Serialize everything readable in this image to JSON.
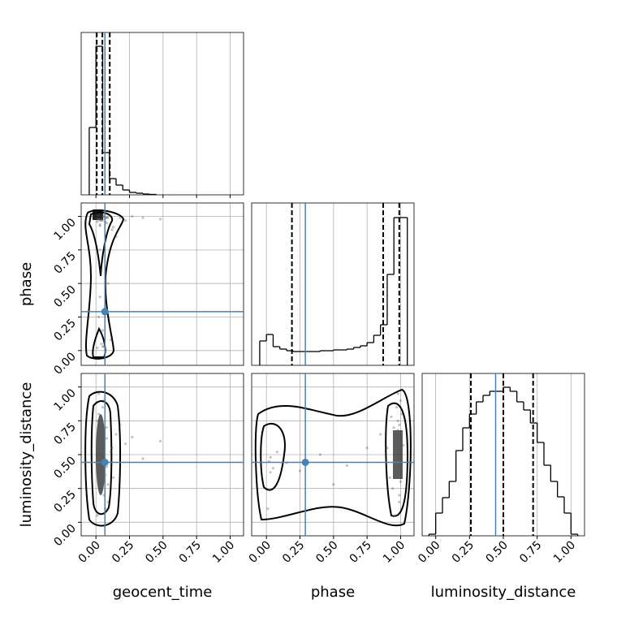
{
  "chart_data": {
    "type": "corner",
    "grid": true,
    "truth_color": "#4682b4",
    "point_color": "#555555",
    "line_color": "#000000",
    "parameters": [
      {
        "label": "geocent_time",
        "lim": [
          -0.11,
          1.1
        ],
        "ticks": [
          {
            "value": 0,
            "label": "0.00"
          },
          {
            "value": 0.25,
            "label": "0.25"
          },
          {
            "value": 0.5,
            "label": "0.50"
          },
          {
            "value": 0.75,
            "label": "0.75"
          },
          {
            "value": 1,
            "label": "1.00"
          }
        ],
        "truth": 0.067,
        "quantiles": [
          0.006,
          0.048,
          0.103
        ],
        "hist": {
          "ylim": [
            0,
            1
          ],
          "bins": [
            -0.05,
            0,
            0.05,
            0.1,
            0.15,
            0.2,
            0.25,
            0.3,
            0.35,
            0.4,
            0.45
          ],
          "counts": [
            0.415,
            0.915,
            0.26,
            0.1,
            0.06,
            0.03,
            0.015,
            0.01,
            0.005,
            0.0025
          ]
        },
        "samples": [
          0.02,
          0.05,
          0.08,
          0.01,
          0.03,
          0.06,
          0.12,
          0.04,
          0.02,
          0.07,
          0.15,
          0.03,
          0.09,
          0.05,
          0.01,
          0.22,
          0.04,
          0.06,
          0.03,
          0.11,
          0.08,
          0.02,
          0.05,
          0.35,
          0.07,
          0.04,
          0.13,
          0.03,
          0.06,
          0.01,
          0.18,
          0.05,
          0.02,
          0.09,
          0.27,
          0.04,
          0.06,
          0.03,
          0.08,
          0.48
        ]
      },
      {
        "label": "phase",
        "lim": [
          -0.11,
          1.1
        ],
        "ticks": [
          {
            "value": 0,
            "label": "0.00"
          },
          {
            "value": 0.25,
            "label": "0.25"
          },
          {
            "value": 0.5,
            "label": "0.50"
          },
          {
            "value": 0.75,
            "label": "0.75"
          },
          {
            "value": 1,
            "label": "1.00"
          }
        ],
        "truth": 0.29,
        "quantiles": [
          0.19,
          0.87,
          0.99
        ],
        "hist": {
          "ylim": [
            0,
            1
          ],
          "bins": [
            -0.05,
            0,
            0.05,
            0.1,
            0.15,
            0.2,
            0.25,
            0.3,
            0.35,
            0.4,
            0.45,
            0.5,
            0.55,
            0.6,
            0.65,
            0.7,
            0.75,
            0.8,
            0.85,
            0.9,
            0.95,
            1,
            1.05
          ],
          "counts": [
            0.15,
            0.19,
            0.115,
            0.1,
            0.09,
            0.085,
            0.085,
            0.085,
            0.085,
            0.09,
            0.09,
            0.095,
            0.095,
            0.1,
            0.11,
            0.12,
            0.14,
            0.185,
            0.25,
            0.56,
            0.91,
            0.91
          ]
        },
        "samples": [
          0.98,
          1.0,
          0.95,
          0.02,
          0.97,
          0.99,
          0.9,
          0.05,
          1.01,
          0.96,
          0.85,
          0.4,
          0.99,
          0.03,
          0.98,
          0.97,
          0.6,
          1.0,
          0.94,
          0.08,
          0.99,
          0.25,
          0.97,
          0.99,
          0.01,
          0.98,
          0.92,
          0.75,
          1.02,
          0.96,
          0.99,
          0.15,
          0.98,
          0.5,
          1.0,
          0.97,
          0.03,
          0.93,
          0.99,
          0.98
        ]
      },
      {
        "label": "luminosity_distance",
        "lim": [
          -0.1,
          1.1
        ],
        "ticks": [
          {
            "value": 0,
            "label": "0.00"
          },
          {
            "value": 0.25,
            "label": "0.25"
          },
          {
            "value": 0.5,
            "label": "0.50"
          },
          {
            "value": 0.75,
            "label": "0.75"
          },
          {
            "value": 1,
            "label": "1.00"
          }
        ],
        "truth": 0.443,
        "quantiles": [
          0.26,
          0.5,
          0.72
        ],
        "hist": {
          "ylim": [
            0,
            1
          ],
          "bins": [
            -0.05,
            0,
            0.05,
            0.1,
            0.15,
            0.2,
            0.25,
            0.3,
            0.35,
            0.4,
            0.45,
            0.5,
            0.55,
            0.6,
            0.65,
            0.7,
            0.75,
            0.8,
            0.85,
            0.9,
            0.95,
            1,
            1.05
          ],
          "counts": [
            0.01,
            0.14,
            0.235,
            0.335,
            0.525,
            0.665,
            0.75,
            0.825,
            0.865,
            0.89,
            0.89,
            0.915,
            0.89,
            0.825,
            0.775,
            0.695,
            0.575,
            0.435,
            0.335,
            0.24,
            0.14,
            0.01
          ]
        },
        "samples": [
          0.5,
          0.3,
          0.7,
          0.45,
          0.6,
          0.2,
          0.55,
          0.4,
          0.8,
          0.35,
          0.65,
          0.5,
          0.15,
          0.48,
          0.75,
          0.58,
          0.42,
          0.9,
          0.25,
          0.52,
          0.62,
          0.38,
          0.85,
          0.47,
          0.1,
          0.68,
          0.33,
          0.55,
          0.57,
          0.05,
          0.72,
          0.44,
          0.95,
          0.28,
          0.63,
          0.5,
          0.37,
          0.78,
          0.41,
          0.6
        ]
      }
    ]
  }
}
